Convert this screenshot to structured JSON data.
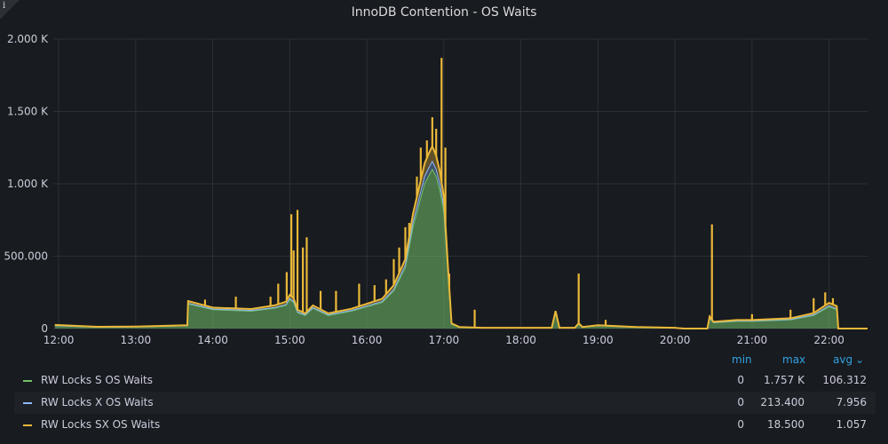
{
  "panel": {
    "info_icon": "info-icon",
    "info_glyph": "i"
  },
  "chart_data": {
    "type": "area",
    "title": "InnoDB Contention - OS Waits",
    "xlabel": "",
    "ylabel": "",
    "ylim": [
      0,
      2000
    ],
    "y_ticks": [
      0,
      500,
      1000,
      1500,
      2000
    ],
    "y_tick_labels": [
      "0",
      "500.000",
      "1.000 K",
      "1.500 K",
      "2.000 K"
    ],
    "x_ticks_hours": [
      12,
      13,
      14,
      15,
      16,
      17,
      18,
      19,
      20,
      21,
      22
    ],
    "x_tick_labels": [
      "12:00",
      "13:00",
      "14:00",
      "15:00",
      "16:00",
      "17:00",
      "18:00",
      "19:00",
      "20:00",
      "21:00",
      "22:00"
    ],
    "xlim_hours": [
      11.93,
      22.5
    ],
    "grid": true,
    "legend_position": "bottom",
    "x_hours": [
      11.95,
      12.5,
      13.0,
      13.5,
      13.67,
      13.68,
      14.0,
      14.5,
      14.8,
      14.95,
      15.0,
      15.05,
      15.1,
      15.2,
      15.3,
      15.5,
      15.8,
      16.0,
      16.2,
      16.35,
      16.5,
      16.6,
      16.7,
      16.75,
      16.8,
      16.85,
      16.9,
      16.95,
      17.0,
      17.05,
      17.1,
      17.2,
      17.5,
      18.0,
      18.4,
      18.45,
      18.5,
      18.7,
      18.75,
      18.8,
      19.0,
      19.5,
      20.0,
      20.12,
      20.42,
      20.45,
      20.5,
      20.8,
      21.0,
      21.5,
      21.8,
      22.0,
      22.1,
      22.12,
      22.5
    ],
    "series": [
      {
        "name": "RW Locks S OS Waits",
        "color": "#73bf69",
        "values": [
          20,
          10,
          12,
          18,
          20,
          170,
          130,
          120,
          140,
          160,
          200,
          180,
          110,
          90,
          140,
          90,
          120,
          150,
          180,
          260,
          420,
          700,
          900,
          1000,
          1050,
          1100,
          1050,
          950,
          800,
          400,
          30,
          10,
          5,
          5,
          5,
          110,
          5,
          5,
          30,
          10,
          20,
          10,
          5,
          0,
          0,
          70,
          40,
          50,
          50,
          60,
          90,
          150,
          130,
          0,
          0
        ]
      },
      {
        "name": "RW Locks X OS Waits",
        "color": "#8ab8ff",
        "values": [
          0,
          0,
          0,
          0,
          0,
          5,
          5,
          5,
          5,
          5,
          8,
          8,
          5,
          5,
          5,
          5,
          5,
          6,
          8,
          10,
          20,
          35,
          45,
          50,
          55,
          55,
          50,
          45,
          40,
          20,
          2,
          0,
          0,
          0,
          0,
          3,
          0,
          0,
          2,
          0,
          1,
          0,
          0,
          0,
          0,
          4,
          2,
          3,
          3,
          3,
          5,
          8,
          7,
          0,
          0
        ]
      },
      {
        "name": "RW Locks SX OS Waits",
        "color": "#eab839",
        "values": [
          5,
          2,
          2,
          3,
          3,
          15,
          10,
          10,
          15,
          20,
          25,
          22,
          15,
          10,
          15,
          10,
          12,
          15,
          18,
          30,
          40,
          60,
          80,
          90,
          100,
          105,
          95,
          85,
          70,
          35,
          4,
          1,
          0,
          0,
          0,
          8,
          0,
          0,
          4,
          1,
          2,
          1,
          0,
          0,
          0,
          10,
          5,
          6,
          6,
          8,
          12,
          20,
          18,
          0,
          0
        ]
      }
    ],
    "spikes_sx_top": [
      [
        13.9,
        200
      ],
      [
        14.3,
        220
      ],
      [
        14.75,
        220
      ],
      [
        14.85,
        310
      ],
      [
        14.96,
        390
      ],
      [
        15.02,
        790
      ],
      [
        15.05,
        540
      ],
      [
        15.1,
        820
      ],
      [
        15.17,
        560
      ],
      [
        15.22,
        630
      ],
      [
        15.4,
        260
      ],
      [
        15.6,
        260
      ],
      [
        15.9,
        310
      ],
      [
        16.1,
        300
      ],
      [
        16.25,
        340
      ],
      [
        16.35,
        480
      ],
      [
        16.42,
        560
      ],
      [
        16.5,
        700
      ],
      [
        16.55,
        730
      ],
      [
        16.65,
        1050
      ],
      [
        16.7,
        1250
      ],
      [
        16.78,
        1300
      ],
      [
        16.85,
        1460
      ],
      [
        16.9,
        1380
      ],
      [
        16.97,
        1870
      ],
      [
        17.02,
        1250
      ],
      [
        17.07,
        380
      ],
      [
        17.4,
        130
      ],
      [
        18.75,
        380
      ],
      [
        19.1,
        60
      ],
      [
        20.48,
        720
      ],
      [
        21.0,
        100
      ],
      [
        21.5,
        130
      ],
      [
        21.8,
        210
      ],
      [
        21.95,
        250
      ],
      [
        22.05,
        210
      ]
    ]
  },
  "legend": {
    "headers": {
      "min": "min",
      "max": "max",
      "avg": "avg",
      "sort_icon": "chevron-down-icon"
    },
    "rows": [
      {
        "name": "RW Locks S OS Waits",
        "color": "#73bf69",
        "min": "0",
        "max": "1.757 K",
        "avg": "106.312"
      },
      {
        "name": "RW Locks X OS Waits",
        "color": "#8ab8ff",
        "min": "0",
        "max": "213.400",
        "avg": "7.956"
      },
      {
        "name": "RW Locks SX OS Waits",
        "color": "#eab839",
        "min": "0",
        "max": "18.500",
        "avg": "1.057"
      }
    ]
  }
}
